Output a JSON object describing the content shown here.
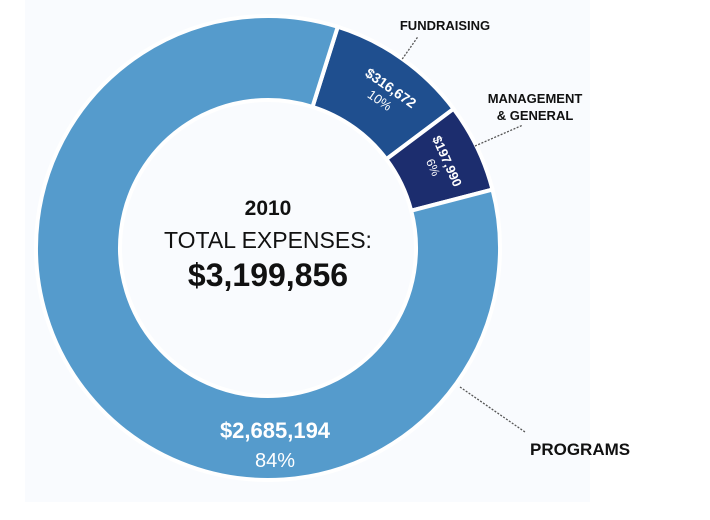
{
  "chart_data": {
    "type": "pie",
    "variant": "donut",
    "center_text": {
      "year": "2010",
      "caption": "TOTAL EXPENSES:",
      "total": "$3,199,856"
    },
    "slices": [
      {
        "name": "PROGRAMS",
        "value": 2685194,
        "value_label": "$2,685,194",
        "percent": 84,
        "percent_label": "84%",
        "color": "#559bcc"
      },
      {
        "name": "FUNDRAISING",
        "value": 316672,
        "value_label": "$316,672",
        "percent": 10,
        "percent_label": "10%",
        "color": "#1f4f8f"
      },
      {
        "name_line1": "MANAGEMENT",
        "name_line2": "& GENERAL",
        "name": "MANAGEMENT & GENERAL",
        "value": 197990,
        "value_label": "$197,990",
        "percent": 6,
        "percent_label": "6%",
        "color": "#1c2d6e"
      }
    ]
  }
}
